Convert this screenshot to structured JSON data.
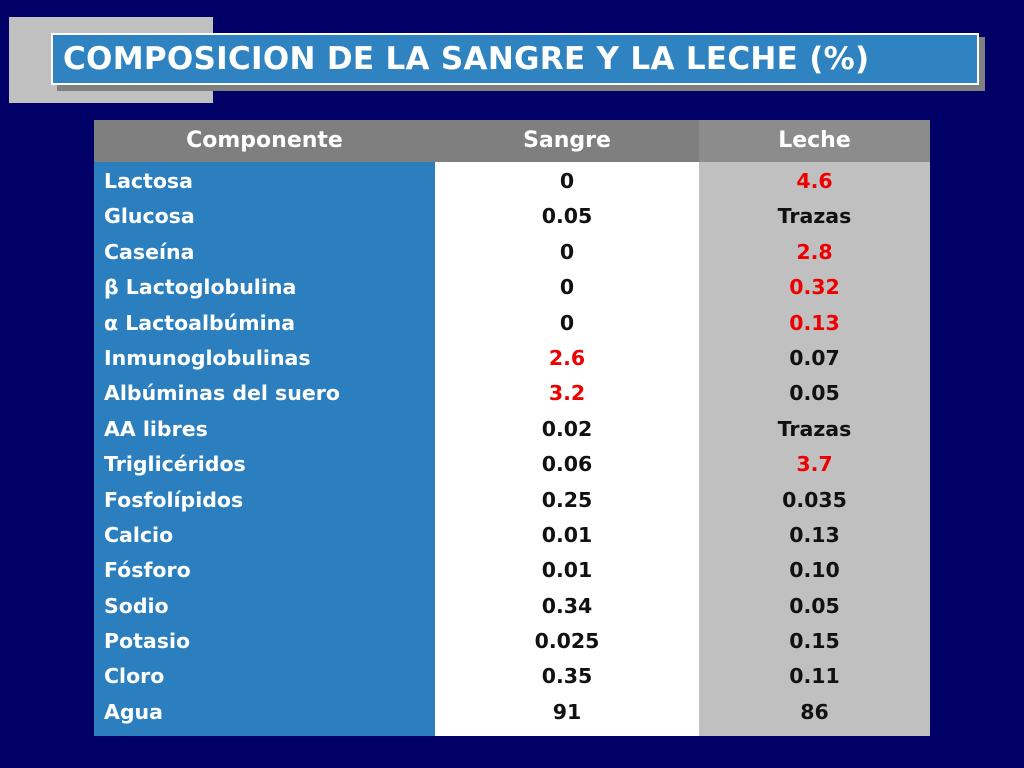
{
  "title": "COMPOSICION DE LA SANGRE Y LA LECHE (%)",
  "headers": {
    "componente": "Componente",
    "sangre": "Sangre",
    "leche": "Leche"
  },
  "rows": [
    {
      "componente": "Lactosa",
      "sangre": "0",
      "leche": "4.6",
      "sangre_highlight": false,
      "leche_highlight": true
    },
    {
      "componente": "Glucosa",
      "sangre": "0.05",
      "leche": "Trazas",
      "sangre_highlight": false,
      "leche_highlight": false
    },
    {
      "componente": "Caseína",
      "sangre": "0",
      "leche": "2.8",
      "sangre_highlight": false,
      "leche_highlight": true
    },
    {
      "componente": "β Lactoglobulina",
      "sangre": "0",
      "leche": "0.32",
      "sangre_highlight": false,
      "leche_highlight": true
    },
    {
      "componente": "α Lactoalbúmina",
      "sangre": "0",
      "leche": "0.13",
      "sangre_highlight": false,
      "leche_highlight": true
    },
    {
      "componente": "Inmunoglobulinas",
      "sangre": "2.6",
      "leche": "0.07",
      "sangre_highlight": true,
      "leche_highlight": false
    },
    {
      "componente": "Albúminas del suero",
      "sangre": "3.2",
      "leche": "0.05",
      "sangre_highlight": true,
      "leche_highlight": false
    },
    {
      "componente": "AA libres",
      "sangre": "0.02",
      "leche": "Trazas",
      "sangre_highlight": false,
      "leche_highlight": false
    },
    {
      "componente": "Triglicéridos",
      "sangre": "0.06",
      "leche": "3.7",
      "sangre_highlight": false,
      "leche_highlight": true
    },
    {
      "componente": "Fosfolípidos",
      "sangre": "0.25",
      "leche": "0.035",
      "sangre_highlight": false,
      "leche_highlight": false
    },
    {
      "componente": "Calcio",
      "sangre": "0.01",
      "leche": "0.13",
      "sangre_highlight": false,
      "leche_highlight": false
    },
    {
      "componente": "Fósforo",
      "sangre": "0.01",
      "leche": "0.10",
      "sangre_highlight": false,
      "leche_highlight": false
    },
    {
      "componente": "Sodio",
      "sangre": "0.34",
      "leche": "0.05",
      "sangre_highlight": false,
      "leche_highlight": false
    },
    {
      "componente": "Potasio",
      "sangre": "0.025",
      "leche": "0.15",
      "sangre_highlight": false,
      "leche_highlight": false
    },
    {
      "componente": "Cloro",
      "sangre": "0.35",
      "leche": "0.11",
      "sangre_highlight": false,
      "leche_highlight": false
    },
    {
      "componente": "Agua",
      "sangre": "91",
      "leche": "86",
      "sangre_highlight": false,
      "leche_highlight": false
    }
  ],
  "colors": {
    "background": "#000066",
    "title_box": "#2f83c0",
    "component_column": "#2b7fbe",
    "header": "#7f7f7f",
    "leche_column": "#c0c0c0",
    "highlight": "#ee0000"
  }
}
